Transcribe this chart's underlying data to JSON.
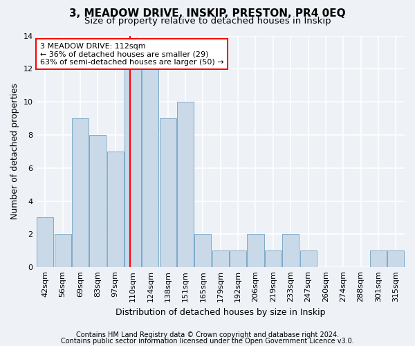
{
  "title": "3, MEADOW DRIVE, INSKIP, PRESTON, PR4 0EQ",
  "subtitle": "Size of property relative to detached houses in Inskip",
  "xlabel": "Distribution of detached houses by size in Inskip",
  "ylabel": "Number of detached properties",
  "categories": [
    "42sqm",
    "56sqm",
    "69sqm",
    "83sqm",
    "97sqm",
    "110sqm",
    "124sqm",
    "138sqm",
    "151sqm",
    "165sqm",
    "179sqm",
    "192sqm",
    "206sqm",
    "219sqm",
    "233sqm",
    "247sqm",
    "260sqm",
    "274sqm",
    "288sqm",
    "301sqm",
    "315sqm"
  ],
  "values": [
    3,
    2,
    9,
    8,
    7,
    12,
    12,
    9,
    10,
    2,
    1,
    1,
    2,
    1,
    2,
    1,
    0,
    0,
    0,
    1,
    1
  ],
  "bar_color": "#c9d9e8",
  "bar_edge_color": "#7aaac8",
  "property_value": 112,
  "annotation_line1": "3 MEADOW DRIVE: 112sqm",
  "annotation_line2": "← 36% of detached houses are smaller (29)",
  "annotation_line3": "63% of semi-detached houses are larger (50) →",
  "annotation_box_color": "white",
  "annotation_box_edge_color": "red",
  "vline_color": "red",
  "ylim": [
    0,
    14
  ],
  "yticks": [
    0,
    2,
    4,
    6,
    8,
    10,
    12,
    14
  ],
  "footer_line1": "Contains HM Land Registry data © Crown copyright and database right 2024.",
  "footer_line2": "Contains public sector information licensed under the Open Government Licence v3.0.",
  "background_color": "#eef2f7",
  "grid_color": "white",
  "title_fontsize": 11,
  "subtitle_fontsize": 9.5,
  "axis_label_fontsize": 9,
  "tick_fontsize": 8,
  "annotation_fontsize": 8,
  "footer_fontsize": 7
}
